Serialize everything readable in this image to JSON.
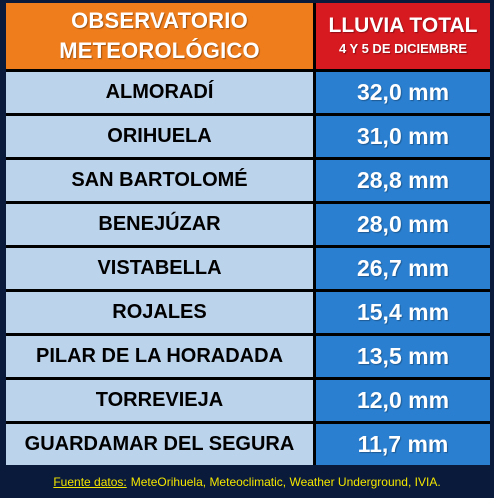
{
  "header": {
    "left_line1": "OBSERVATORIO",
    "left_line2": "METEOROLÓGICO",
    "right_title": "LLUVIA TOTAL",
    "right_subtitle": "4 Y 5 DE DICIEMBRE"
  },
  "rows": [
    {
      "name": "ALMORADÍ",
      "value": "32,0 mm"
    },
    {
      "name": "ORIHUELA",
      "value": "31,0 mm"
    },
    {
      "name": "SAN BARTOLOMÉ",
      "value": "28,8 mm"
    },
    {
      "name": "BENEJÚZAR",
      "value": "28,0 mm"
    },
    {
      "name": "VISTABELLA",
      "value": "26,7 mm"
    },
    {
      "name": "ROJALES",
      "value": "15,4 mm"
    },
    {
      "name": "PILAR DE LA HORADADA",
      "value": "13,5 mm"
    },
    {
      "name": "TORREVIEJA",
      "value": "12,0 mm"
    },
    {
      "name": "GUARDAMAR DEL SEGURA",
      "value": "11,7 mm"
    }
  ],
  "footer": {
    "label": "Fuente datos:",
    "sources": "MeteOrihuela, Meteoclimatic, Weather Underground, IVIA."
  },
  "colors": {
    "header_left": "#f07d1c",
    "header_right": "#d71920",
    "name_cell": "#bcd3ec",
    "value_cell": "#2a7fd0",
    "footer_text": "#f3e600"
  }
}
